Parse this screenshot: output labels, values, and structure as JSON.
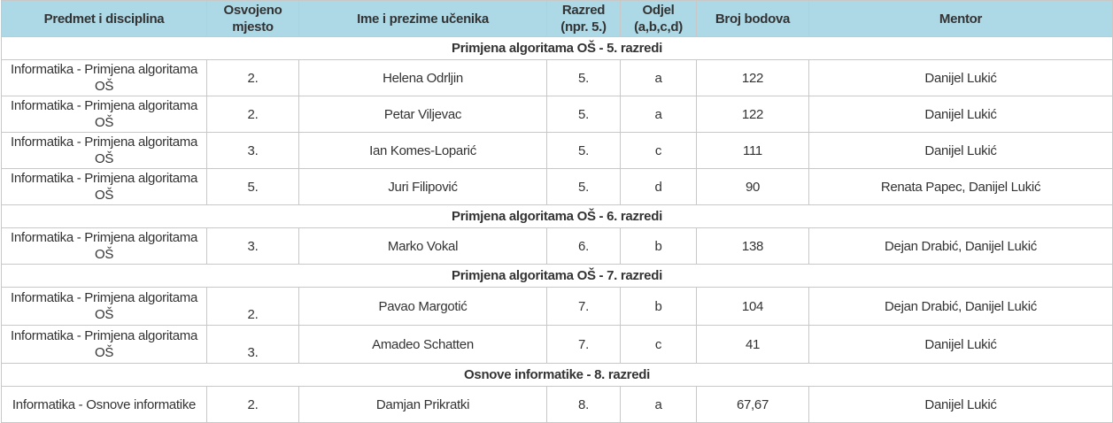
{
  "headers": [
    "Predmet i disciplina",
    "Osvojeno mjesto",
    "Ime i prezime učenika",
    "Razred (npr. 5.)",
    "Odjel (a,b,c,d)",
    "Broj bodova",
    "Mentor"
  ],
  "header_bg": "#add8e6",
  "sections": [
    {
      "title": "Primjena algoritama OŠ - 5. razredi",
      "rows": [
        [
          "Informatika - Primjena algoritama OŠ",
          "2.",
          "Helena Odrljin",
          "5.",
          "a",
          "122",
          "Danijel Lukić"
        ],
        [
          "Informatika - Primjena algoritama OŠ",
          "2.",
          "Petar Viljevac",
          "5.",
          "a",
          "122",
          "Danijel Lukić"
        ],
        [
          "Informatika - Primjena algoritama OŠ",
          "3.",
          "Ian Komes-Loparić",
          "5.",
          "c",
          "111",
          "Danijel Lukić"
        ],
        [
          "Informatika - Primjena algoritama OŠ",
          "5.",
          "Juri Filipović",
          "5.",
          "d",
          "90",
          "Renata Papec,  Danijel Lukić"
        ]
      ]
    },
    {
      "title": "Primjena algoritama OŠ - 6. razredi",
      "rows": [
        [
          "Informatika - Primjena algoritama OŠ",
          "3.",
          "Marko Vokal",
          "6.",
          "b",
          "138",
          "Dejan Drabić, Danijel Lukić"
        ]
      ]
    },
    {
      "title": "Primjena algoritama OŠ - 7. razredi",
      "rows": [
        [
          "Informatika - Primjena algoritama OŠ",
          "2.",
          "Pavao Margotić",
          "7.",
          "b",
          "104",
          "Dejan Drabić, Danijel Lukić"
        ],
        [
          "Informatika - Primjena algoritama OŠ",
          "3.",
          "Amadeo Schatten",
          "7.",
          "c",
          "41",
          "Danijel Lukić"
        ]
      ]
    },
    {
      "title": "Osnove informatike - 8. razredi",
      "rows": [
        [
          "Informatika - Osnove informatike",
          "2.",
          "Damjan Prikratki",
          "8.",
          "a",
          "67,67",
          "Danijel Lukić"
        ]
      ]
    }
  ]
}
